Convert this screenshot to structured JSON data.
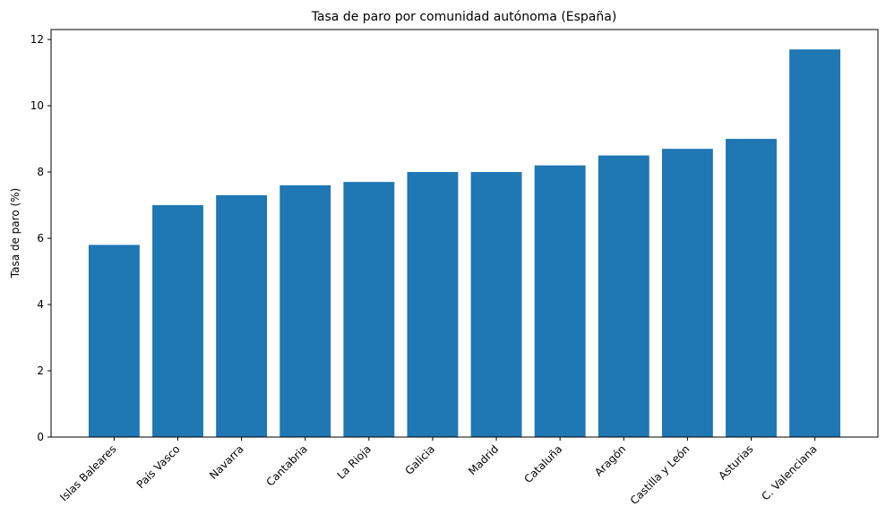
{
  "chart_data": {
    "type": "bar",
    "title": "Tasa de paro por comunidad autónoma (España)",
    "xlabel": "",
    "ylabel": "Tasa de paro (%)",
    "categories": [
      "Islas Baleares",
      "País Vasco",
      "Navarra",
      "Cantabria",
      "La Rioja",
      "Galicia",
      "Madrid",
      "Cataluña",
      "Aragón",
      "Castilla y León",
      "Asturias",
      "C. Valenciana"
    ],
    "values": [
      5.8,
      7.0,
      7.3,
      7.6,
      7.7,
      8.0,
      8.0,
      8.2,
      8.5,
      8.7,
      9.0,
      11.7
    ],
    "ylim": [
      0,
      12.3
    ],
    "yticks": [
      0,
      2,
      4,
      6,
      8,
      10,
      12
    ],
    "grid": false,
    "bar_color": "#1f77b4"
  }
}
